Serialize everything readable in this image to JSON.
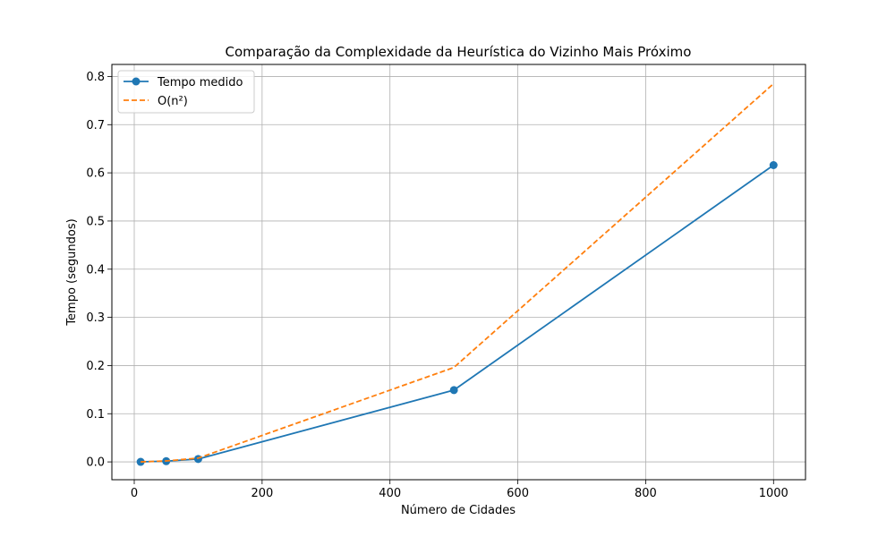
{
  "chart_data": {
    "type": "line",
    "title": "Comparação da Complexidade da Heurística do Vizinho Mais Próximo",
    "xlabel": "Número de Cidades",
    "ylabel": "Tempo (segundos)",
    "xlim": [
      -35,
      1050
    ],
    "ylim": [
      -0.037,
      0.825
    ],
    "x_ticks": [
      0,
      200,
      400,
      600,
      800,
      1000
    ],
    "y_ticks": [
      0.0,
      0.1,
      0.2,
      0.3,
      0.4,
      0.5,
      0.6,
      0.7,
      0.8
    ],
    "x_tick_labels": [
      "0",
      "200",
      "400",
      "600",
      "800",
      "1000"
    ],
    "y_tick_labels": [
      "0.0",
      "0.1",
      "0.2",
      "0.3",
      "0.4",
      "0.5",
      "0.6",
      "0.7",
      "0.8"
    ],
    "grid": true,
    "legend_position": "top-left",
    "x": [
      10,
      50,
      100,
      500,
      1000
    ],
    "series": [
      {
        "name": "Tempo medido",
        "values": [
          0.0001,
          0.0015,
          0.006,
          0.149,
          0.616
        ],
        "color": "#1f77b4",
        "style": "solid",
        "marker": "circle"
      },
      {
        "name": "O(n²)",
        "values": [
          7.85e-05,
          0.00196,
          0.00785,
          0.196,
          0.785
        ],
        "color": "#ff7f0e",
        "style": "dashed",
        "marker": "none"
      }
    ]
  }
}
